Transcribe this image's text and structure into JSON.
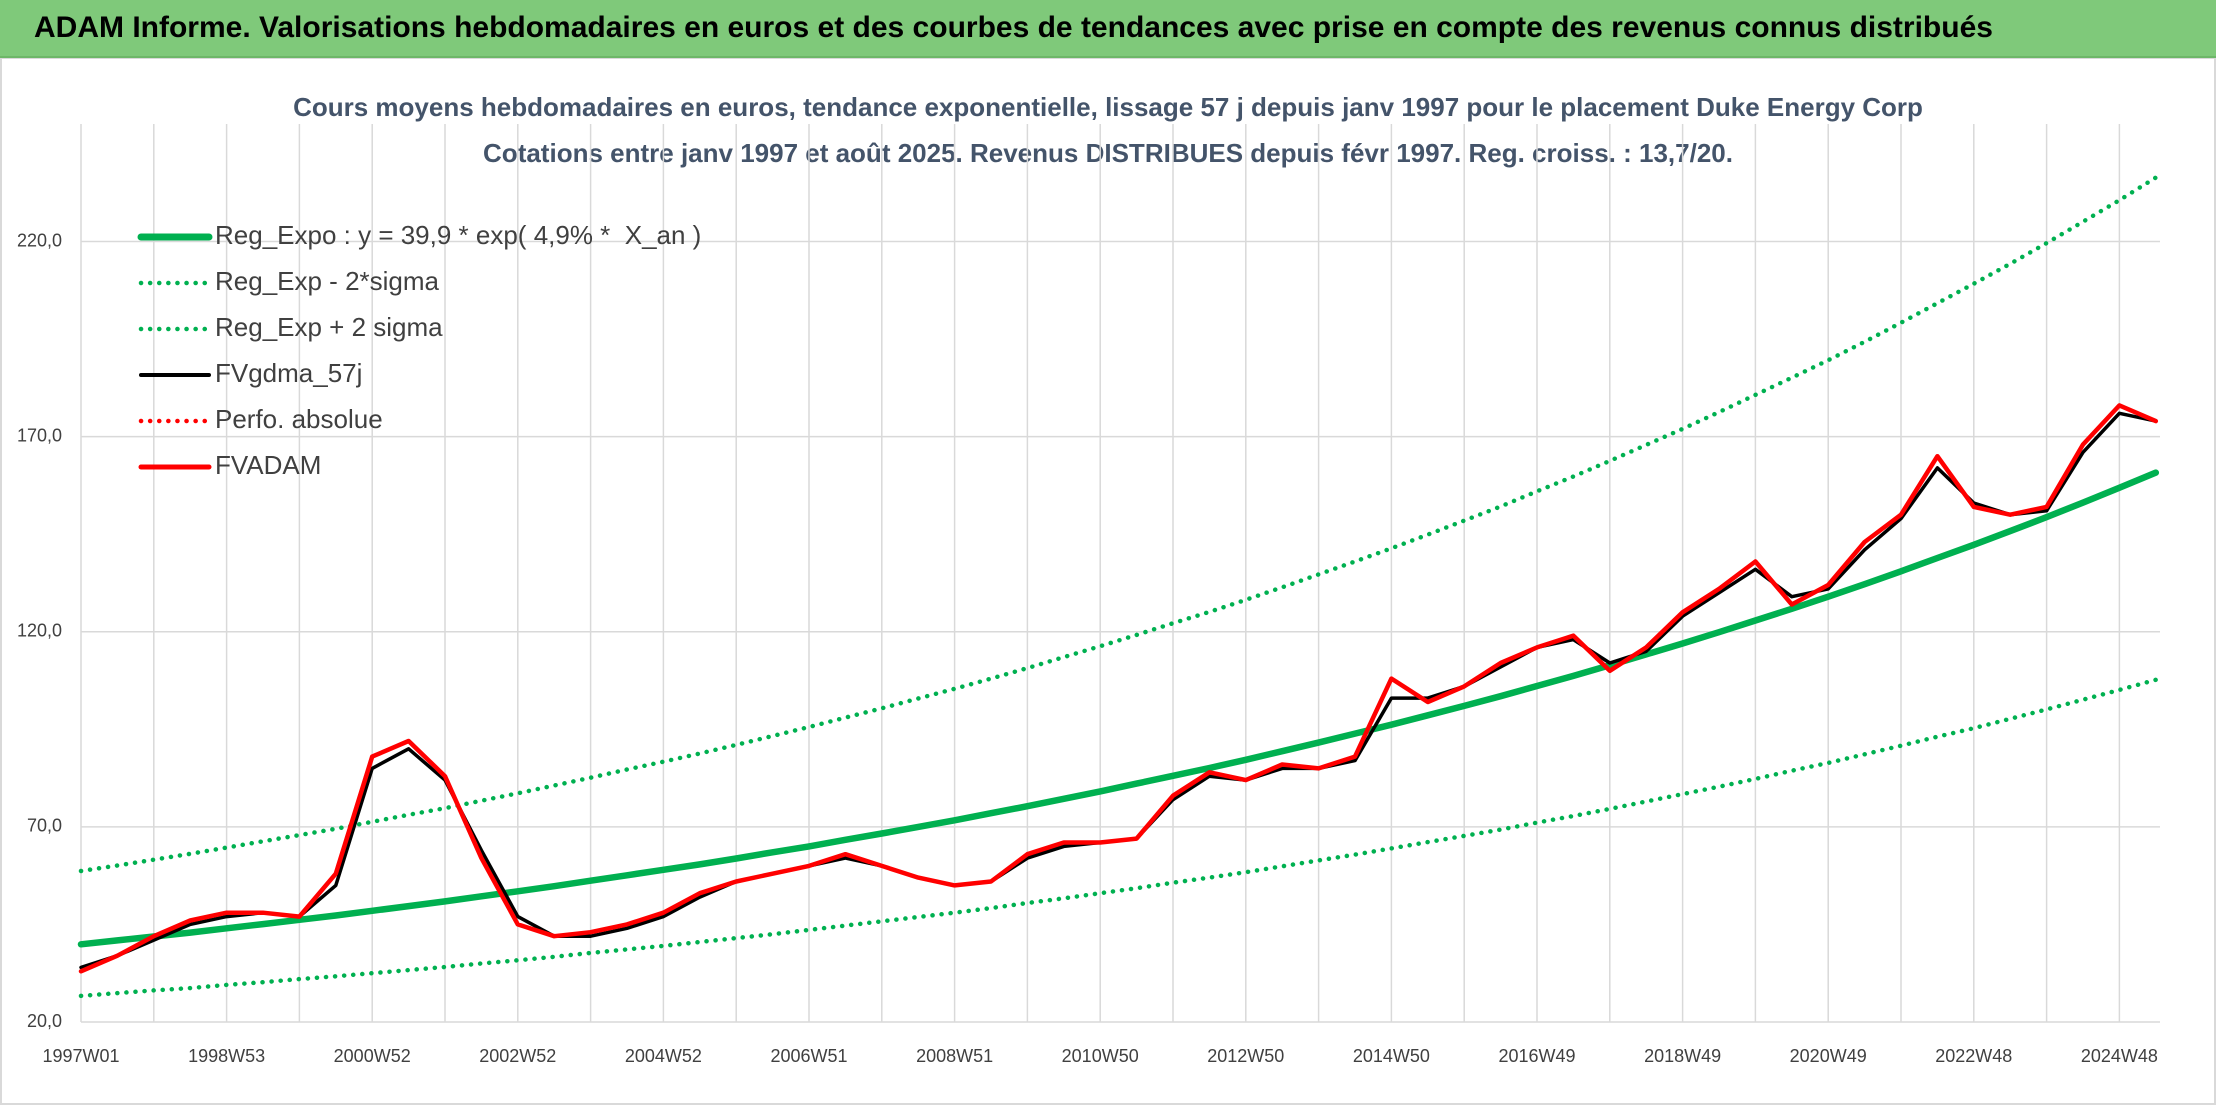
{
  "header": {
    "title": "ADAM Informe. Valorisations hebdomadaires en euros et des courbes de tendances avec prise en compte des revenus connus distribués"
  },
  "chart_data": {
    "type": "line",
    "title": "Cours moyens hebdomadaires en euros, tendance exponentielle, lissage 57 j depuis janv 1997 pour le placement Duke Energy Corp",
    "subtitle": "Cotations entre janv 1997 et août 2025. Revenus DISTRIBUES depuis févr 1997. Reg. croiss. : 13,7/20.",
    "categories": [
      "1997W01",
      null,
      null,
      null,
      "1998W53",
      null,
      null,
      null,
      "2000W52",
      null,
      null,
      null,
      "2002W52",
      null,
      null,
      null,
      "2004W52",
      null,
      null,
      null,
      "2006W51",
      null,
      null,
      null,
      "2008W51",
      null,
      null,
      null,
      "2010W50",
      null,
      null,
      null,
      "2012W50",
      null,
      null,
      null,
      "2014W50",
      null,
      null,
      null,
      "2016W49",
      null,
      null,
      null,
      "2018W49",
      null,
      null,
      null,
      "2020W49",
      null,
      null,
      null,
      "2022W48",
      null,
      null,
      null,
      "2024W48",
      null
    ],
    "ylim": [
      20,
      245
    ],
    "yticks": [
      {
        "value": 20,
        "label": "20,0"
      },
      {
        "value": 70,
        "label": "70,0"
      },
      {
        "value": 120,
        "label": "120,0"
      },
      {
        "value": 170,
        "label": "170,0"
      },
      {
        "value": 220,
        "label": "220,0"
      }
    ],
    "grid": true,
    "legend": "top-left",
    "series": [
      {
        "name": "Reg_Expo : y = 39,9 * exp( 4,9% *  X_an )",
        "color": "#00b050",
        "style": "solid",
        "values": [
          39.9,
          40.9,
          41.9,
          42.9,
          44.0,
          45.1,
          46.2,
          47.3,
          48.5,
          49.7,
          50.9,
          52.2,
          53.5,
          54.8,
          56.2,
          57.6,
          59.0,
          60.4,
          61.9,
          63.5,
          65.0,
          66.7,
          68.3,
          70.0,
          71.7,
          73.5,
          75.3,
          77.2,
          79.1,
          81.1,
          83.1,
          85.1,
          87.2,
          89.4,
          91.6,
          93.9,
          96.2,
          98.6,
          101.0,
          103.5,
          106.1,
          108.7,
          111.4,
          114.2,
          117.0,
          119.9,
          122.9,
          125.9,
          129.0,
          132.2,
          135.5,
          138.9,
          142.3,
          145.8,
          149.4,
          153.1,
          156.9,
          160.8
        ]
      },
      {
        "name": "Reg_Exp - 2*sigma",
        "color": "#00b050",
        "style": "dotted",
        "values": [
          26.7,
          27.4,
          28.1,
          28.7,
          29.5,
          30.2,
          31.0,
          31.7,
          32.5,
          33.3,
          34.1,
          35.0,
          35.8,
          36.7,
          37.7,
          38.6,
          39.5,
          40.5,
          41.5,
          42.5,
          43.6,
          44.7,
          45.8,
          46.9,
          48.0,
          49.2,
          50.5,
          51.7,
          53.0,
          54.3,
          55.7,
          57.0,
          58.4,
          59.9,
          61.4,
          62.9,
          64.5,
          66.1,
          67.7,
          69.3,
          71.1,
          72.8,
          74.6,
          76.5,
          78.4,
          80.3,
          82.3,
          84.4,
          86.4,
          88.6,
          90.8,
          93.1,
          95.3,
          97.7,
          100.1,
          102.6,
          105.1,
          107.7
        ]
      },
      {
        "name": "Reg_Exp + 2 sigma",
        "color": "#00b050",
        "style": "dotted",
        "values": [
          58.7,
          60.1,
          61.6,
          63.1,
          64.7,
          66.3,
          67.9,
          69.5,
          71.3,
          73.1,
          74.8,
          76.7,
          78.6,
          80.6,
          82.6,
          84.7,
          86.7,
          88.8,
          91.0,
          93.3,
          95.6,
          98.0,
          100.4,
          102.9,
          105.4,
          108.0,
          110.7,
          113.5,
          116.3,
          119.2,
          122.2,
          125.1,
          128.2,
          131.4,
          134.7,
          138.0,
          141.4,
          144.9,
          148.5,
          152.1,
          156.0,
          159.8,
          163.8,
          167.9,
          172.0,
          176.3,
          180.7,
          185.1,
          189.6,
          194.3,
          199.2,
          204.2,
          209.2,
          214.3,
          219.6,
          225.1,
          230.6,
          236.4
        ]
      },
      {
        "name": "FVgdma_57j",
        "color": "#000000",
        "style": "solid",
        "values": [
          34,
          37,
          41,
          45,
          47,
          48,
          47,
          55,
          85,
          90,
          82,
          64,
          47,
          42,
          42,
          44,
          47,
          52,
          56,
          58,
          60,
          62,
          60,
          57,
          55,
          56,
          62,
          65,
          66,
          67,
          77,
          83,
          82,
          85,
          85,
          87,
          103,
          103,
          106,
          111,
          116,
          118,
          112,
          115,
          124,
          130,
          136,
          129,
          131,
          141,
          149,
          162,
          153,
          150,
          151,
          166,
          176,
          174
        ]
      },
      {
        "name": "Perfo. absolue",
        "color": "#ff0000",
        "style": "dotted",
        "values": [
          null,
          null,
          null,
          null,
          null,
          null,
          null,
          null,
          null,
          null,
          null,
          null,
          null,
          null,
          null,
          null,
          null,
          null,
          null,
          null,
          null,
          null,
          null,
          null,
          null,
          null,
          null,
          null,
          null,
          null,
          null,
          null,
          null,
          null,
          null,
          null,
          null,
          null,
          null,
          null,
          null,
          null,
          null,
          null,
          null,
          null,
          null,
          null,
          null,
          null,
          null,
          null,
          null,
          null,
          null,
          null,
          null,
          null
        ]
      },
      {
        "name": "FVADAM",
        "color": "#ff0000",
        "style": "solid",
        "values": [
          33,
          37,
          42,
          46,
          48,
          48,
          47,
          58,
          88,
          92,
          83,
          62,
          45,
          42,
          43,
          45,
          48,
          53,
          56,
          58,
          60,
          63,
          60,
          57,
          55,
          56,
          63,
          66,
          66,
          67,
          78,
          84,
          82,
          86,
          85,
          88,
          108,
          102,
          106,
          112,
          116,
          119,
          110,
          116,
          125,
          131,
          138,
          127,
          132,
          143,
          150,
          165,
          152,
          150,
          152,
          168,
          178,
          174
        ]
      }
    ]
  }
}
